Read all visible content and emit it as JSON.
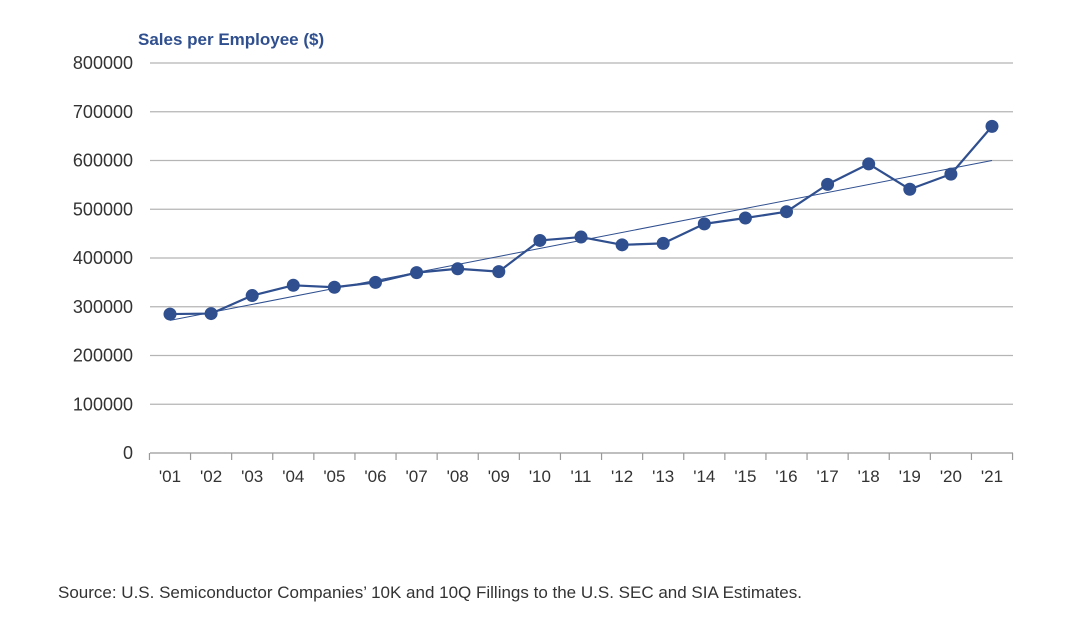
{
  "chart_data": {
    "type": "line",
    "title": "",
    "ylabel": "Sales per Employee ($)",
    "xlabel": "",
    "categories": [
      "'01",
      "'02",
      "'03",
      "'04",
      "'05",
      "'06",
      "'07",
      "'08",
      "'09",
      "'10",
      "'11",
      "'12",
      "'13",
      "'14",
      "'15",
      "'16",
      "'17",
      "'18",
      "'19",
      "'20",
      "'21"
    ],
    "series": [
      {
        "values": [
          285000,
          286000,
          323000,
          344000,
          340000,
          350000,
          370000,
          378000,
          372000,
          436000,
          443000,
          427000,
          430000,
          470000,
          482000,
          495000,
          551000,
          593000,
          541000,
          572000,
          670000
        ]
      }
    ],
    "trendline": {
      "start": 272000,
      "end": 600000
    },
    "ylim": [
      0,
      800000
    ],
    "yticks": [
      "0",
      "100000",
      "200000",
      "300000",
      "400000",
      "500000",
      "600000",
      "700000",
      "800000"
    ],
    "grid": true,
    "legend": "none",
    "colors": {
      "series": "#2f4f8f",
      "trend": "#2f4f8f",
      "grid": "#b5b5b5",
      "axis": "#999999"
    },
    "source": "Source: U.S. Semiconductor Companies’ 10K and 10Q Fillings to the U.S. SEC and SIA Estimates."
  }
}
